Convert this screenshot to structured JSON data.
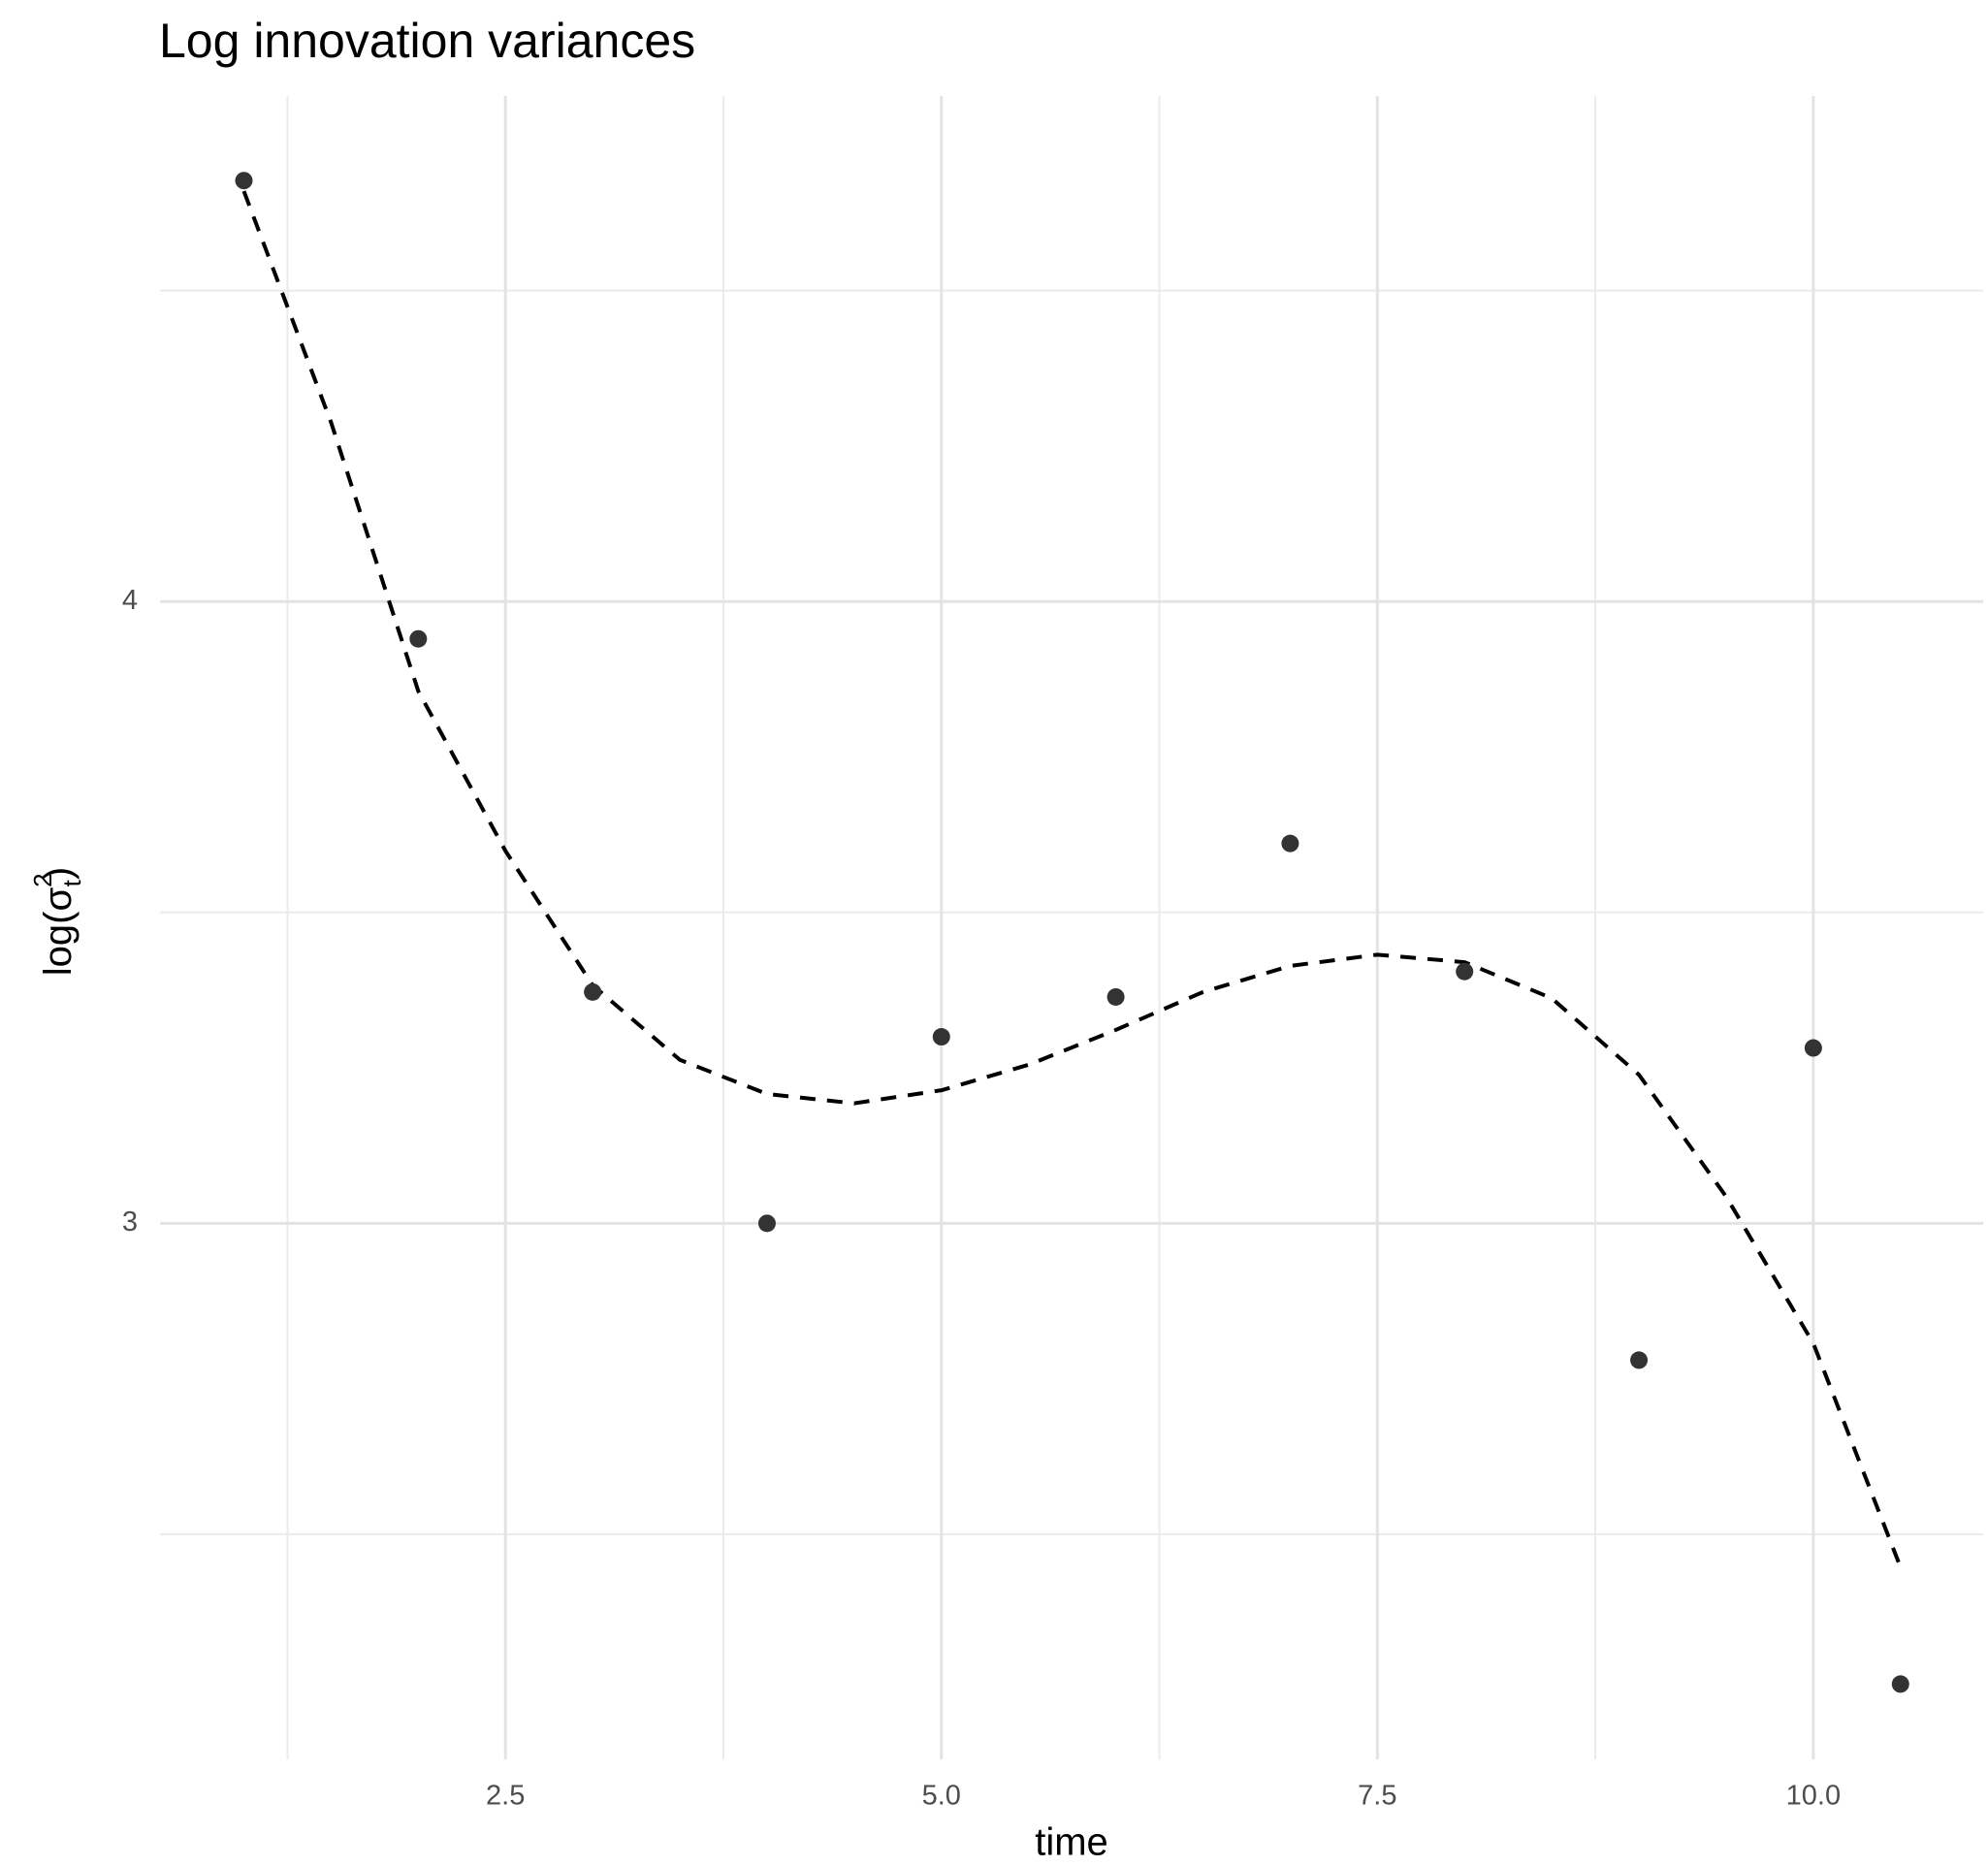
{
  "chart_data": {
    "type": "scatter",
    "title": "Log innovation variances",
    "x_label": "time",
    "y_label": {
      "prefix": "log(σ",
      "subscript": "t",
      "superscript": "2",
      "suffix": ")"
    },
    "series": [
      {
        "type": "scatter",
        "color": "#333333",
        "x": [
          1,
          2,
          3,
          4,
          5,
          6,
          7,
          8,
          9,
          10,
          10.5
        ],
        "values": [
          4.677,
          3.94,
          3.372,
          3.0,
          3.3,
          3.364,
          3.611,
          3.405,
          2.78,
          3.282,
          2.259
        ]
      },
      {
        "type": "line",
        "color": "#000000",
        "dashed": true,
        "x": [
          1,
          1.5,
          2,
          2.5,
          3,
          3.5,
          4,
          4.5,
          5,
          5.5,
          6,
          6.5,
          7,
          7.5,
          8,
          8.5,
          9,
          9.5,
          10,
          10.5
        ],
        "values": [
          4.66,
          4.288,
          3.856,
          3.599,
          3.383,
          3.263,
          3.208,
          3.193,
          3.214,
          3.255,
          3.311,
          3.372,
          3.414,
          3.432,
          3.42,
          3.362,
          3.239,
          3.043,
          2.807,
          2.447
        ]
      }
    ],
    "xlim": [
      0.519,
      10.974
    ],
    "ylim": [
      2.138,
      4.813
    ],
    "xticks": [
      {
        "value": 2.5,
        "label": "2.5"
      },
      {
        "value": 5,
        "label": "5.0"
      },
      {
        "value": 7.5,
        "label": "7.5"
      },
      {
        "value": 10,
        "label": "10.0"
      }
    ],
    "yticks": [
      3,
      4
    ],
    "x_minor_ticks": [
      1.25,
      3.75,
      6.25,
      8.75
    ],
    "y_minor_ticks": [
      2.5,
      3.5,
      4.5
    ],
    "grid": true
  }
}
